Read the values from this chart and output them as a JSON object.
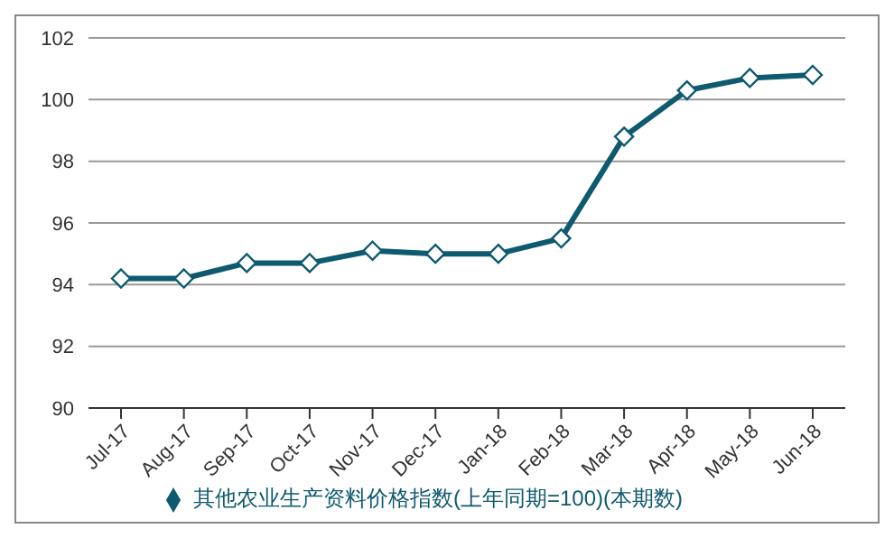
{
  "chart_data": {
    "type": "line",
    "categories": [
      "Jul-17",
      "Aug-17",
      "Sep-17",
      "Oct-17",
      "Nov-17",
      "Dec-17",
      "Jan-18",
      "Feb-18",
      "Mar-18",
      "Apr-18",
      "May-18",
      "Jun-18"
    ],
    "series": [
      {
        "name": "其他农业生产资料价格指数(上年同期=100)(本期数)",
        "color": "#0e5a6e",
        "values": [
          94.2,
          94.2,
          94.7,
          94.7,
          95.1,
          95.0,
          95.0,
          95.5,
          98.8,
          100.3,
          100.7,
          100.8
        ]
      }
    ],
    "ylim": [
      90,
      102
    ],
    "yticks": [
      90,
      92,
      94,
      96,
      98,
      100,
      102
    ],
    "grid": "y",
    "legend": "bottom",
    "marker": "diamond",
    "line_style": "solid"
  }
}
